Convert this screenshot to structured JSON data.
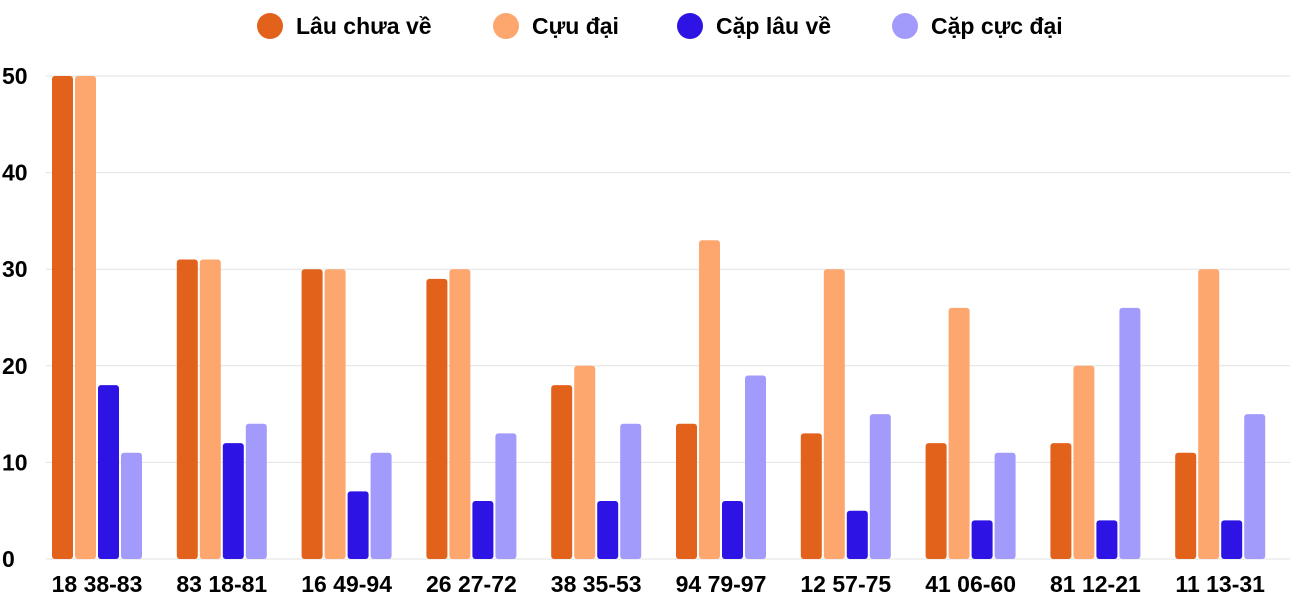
{
  "chart_data": {
    "type": "bar",
    "title": "",
    "xlabel": "",
    "ylabel": "",
    "ylim": [
      0,
      50
    ],
    "yticks": [
      0,
      10,
      20,
      30,
      40,
      50
    ],
    "grid": true,
    "legend_position": "top",
    "categories": [
      "18 38-83",
      "83 18-81",
      "16 49-94",
      "26 27-72",
      "38 35-53",
      "94 79-97",
      "12 57-75",
      "41 06-60",
      "81 12-21",
      "11 13-31"
    ],
    "series": [
      {
        "name": "Lâu chưa về",
        "color": "#E2621B",
        "values": [
          50,
          31,
          30,
          29,
          18,
          14,
          13,
          12,
          12,
          11
        ]
      },
      {
        "name": "Cựu đại",
        "color": "#FDA76E",
        "values": [
          50,
          31,
          30,
          30,
          20,
          33,
          30,
          26,
          20,
          30
        ]
      },
      {
        "name": "Cặp lâu về",
        "color": "#2E14E4",
        "values": [
          18,
          12,
          7,
          6,
          6,
          6,
          5,
          4,
          4,
          4
        ]
      },
      {
        "name": "Cặp cực đại",
        "color": "#A29BFB",
        "values": [
          11,
          14,
          11,
          13,
          14,
          19,
          15,
          11,
          26,
          15
        ]
      }
    ]
  }
}
